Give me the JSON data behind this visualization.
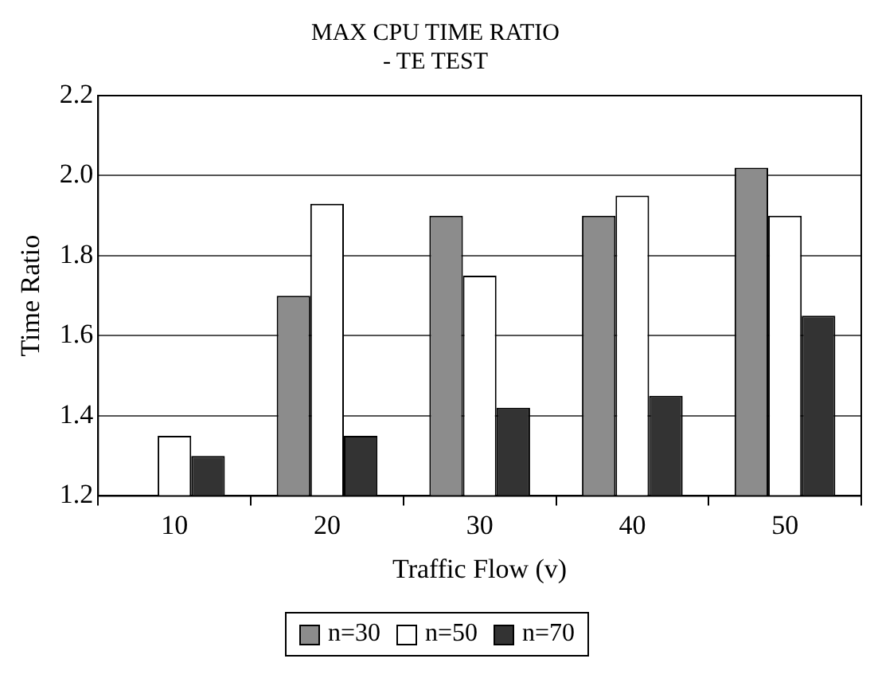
{
  "chart_data": {
    "type": "bar",
    "title": "MAX CPU TIME RATIO\n- TE TEST",
    "xlabel": "Traffic Flow (v)",
    "ylabel": "Time Ratio",
    "categories": [
      "10",
      "20",
      "30",
      "40",
      "50"
    ],
    "series": [
      {
        "name": "n=30",
        "color": "#8c8c8c",
        "values": [
          null,
          1.7,
          1.9,
          1.9,
          2.02
        ]
      },
      {
        "name": "n=50",
        "color": "#ffffff",
        "values": [
          1.35,
          1.93,
          1.75,
          1.95,
          1.9
        ]
      },
      {
        "name": "n=70",
        "color": "#333333",
        "values": [
          1.3,
          1.35,
          1.42,
          1.45,
          1.65
        ]
      }
    ],
    "ylim": [
      1.2,
      2.2
    ],
    "yticks": [
      {
        "value": 1.2,
        "label": "1.2"
      },
      {
        "value": 1.4,
        "label": "1.4"
      },
      {
        "value": 1.6,
        "label": "1.6"
      },
      {
        "value": 1.8,
        "label": "1.8"
      },
      {
        "value": 2.0,
        "label": "2.0"
      },
      {
        "value": 2.2,
        "label": "2.2"
      }
    ],
    "grid": "y",
    "legend": "bottom"
  }
}
